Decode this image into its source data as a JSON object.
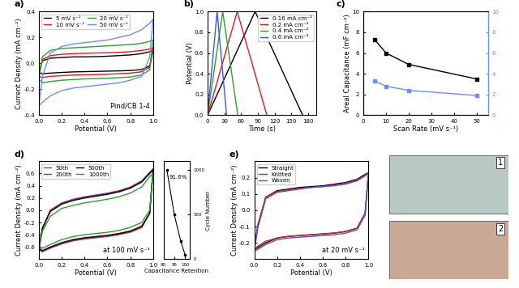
{
  "chart_data": [
    {
      "type": "line",
      "panel_label": "a)",
      "x_label": "Potential (V)",
      "y_label": "Current Density (mA cm⁻²)",
      "annotation": "Pind/CB 1-4",
      "legend": "upper left",
      "xlim": [
        0.0,
        1.0
      ],
      "ylim": [
        -0.4,
        0.4
      ],
      "xticks": [
        0.0,
        0.2,
        0.4,
        0.6,
        0.8,
        1.0
      ],
      "yticks": [
        -0.4,
        -0.2,
        0.0,
        0.2,
        0.4
      ],
      "x": [
        0,
        0.03,
        0.1,
        0.2,
        0.3,
        0.4,
        0.5,
        0.6,
        0.7,
        0.8,
        0.9,
        0.97,
        1.0,
        0.97,
        0.9,
        0.8,
        0.7,
        0.6,
        0.5,
        0.4,
        0.3,
        0.2,
        0.1,
        0.03,
        0
      ],
      "series": [
        {
          "name": "5 mV s⁻¹",
          "color": "#000000",
          "values": [
            -0.07,
            0.02,
            0.04,
            0.045,
            0.05,
            0.05,
            0.052,
            0.055,
            0.06,
            0.065,
            0.075,
            0.09,
            0.1,
            -0.02,
            -0.048,
            -0.055,
            -0.058,
            -0.06,
            -0.062,
            -0.064,
            -0.066,
            -0.07,
            -0.075,
            -0.08,
            -0.07
          ]
        },
        {
          "name": "10 mV s⁻¹",
          "color": "#e41a1c",
          "values": [
            -0.1,
            0.03,
            0.06,
            0.07,
            0.075,
            0.078,
            0.08,
            0.082,
            0.085,
            0.09,
            0.1,
            0.11,
            0.12,
            -0.03,
            -0.065,
            -0.075,
            -0.08,
            -0.084,
            -0.086,
            -0.088,
            -0.09,
            -0.095,
            -0.1,
            -0.11,
            -0.1
          ]
        },
        {
          "name": "20 mV s⁻¹",
          "color": "#2ca02c",
          "values": [
            -0.12,
            0.05,
            0.1,
            0.115,
            0.12,
            0.125,
            0.13,
            0.135,
            0.14,
            0.145,
            0.155,
            0.17,
            0.18,
            -0.05,
            -0.09,
            -0.105,
            -0.11,
            -0.115,
            -0.118,
            -0.12,
            -0.125,
            -0.13,
            -0.14,
            -0.15,
            -0.12
          ]
        },
        {
          "name": "50 mV s⁻¹",
          "color": "#6f8ff0",
          "values": [
            -0.33,
            -0.1,
            0.08,
            0.13,
            0.15,
            0.16,
            0.17,
            0.18,
            0.2,
            0.22,
            0.26,
            0.31,
            0.34,
            0.05,
            -0.1,
            -0.13,
            -0.15,
            -0.16,
            -0.17,
            -0.18,
            -0.19,
            -0.21,
            -0.25,
            -0.3,
            -0.33
          ]
        }
      ]
    },
    {
      "type": "line",
      "panel_label": "b)",
      "x_label": "Time (s)",
      "y_label": "Potential (V)",
      "legend": "upper right",
      "xlim": [
        0,
        195
      ],
      "ylim": [
        0.0,
        1.0
      ],
      "xticks": [
        0,
        30,
        60,
        90,
        120,
        150,
        180
      ],
      "yticks": [
        0.0,
        0.2,
        0.4,
        0.6,
        0.8,
        1.0
      ],
      "series": [
        {
          "name": "0.16 mA cm⁻²",
          "color": "#000000",
          "x": [
            0,
            85,
            170
          ],
          "values": [
            0.0,
            1.0,
            0.0
          ]
        },
        {
          "name": "0.2 mA cm⁻²",
          "color": "#e41a1c",
          "x": [
            0,
            53,
            106
          ],
          "values": [
            0.0,
            1.0,
            0.0
          ]
        },
        {
          "name": "0.4 mA cm⁻²",
          "color": "#2ca02c",
          "x": [
            0,
            27,
            54
          ],
          "values": [
            0.0,
            1.0,
            0.0
          ]
        },
        {
          "name": "0.6 mA cm⁻²",
          "color": "#3b5bdb",
          "x": [
            0,
            17,
            34
          ],
          "values": [
            0.0,
            1.0,
            0.0
          ]
        }
      ]
    },
    {
      "type": "line",
      "panel_label": "c)",
      "x_label": "Scan Rate (mV s⁻¹)",
      "y_label": "Areal Capacitance (mF cm⁻²)",
      "xlim": [
        0,
        55
      ],
      "ylim": [
        0,
        10
      ],
      "y2lim": [
        0,
        10
      ],
      "xticks": [
        0,
        10,
        20,
        30,
        40,
        50
      ],
      "yticks": [
        0,
        2,
        4,
        6,
        8,
        10
      ],
      "y2ticks": [
        0,
        2,
        4,
        6,
        8,
        10
      ],
      "x": [
        5,
        10,
        20,
        50
      ],
      "marker": "s",
      "series": [
        {
          "color": "#000000",
          "values": [
            7.3,
            6.0,
            4.9,
            3.5
          ]
        },
        {
          "color": "#6f8ff0",
          "values": [
            3.3,
            2.8,
            2.4,
            1.9
          ],
          "axis": "y2"
        }
      ]
    },
    {
      "type": "line",
      "panel_label": "d)",
      "x_label": "Potential (V)",
      "y_label": "Current Density (mA cm⁻²)",
      "annotation": "at 100 mV s⁻¹",
      "legend": "upper left",
      "xlim": [
        0.0,
        1.0
      ],
      "ylim": [
        -0.8,
        0.8
      ],
      "xticks": [
        0.0,
        0.2,
        0.4,
        0.6,
        0.8,
        1.0
      ],
      "yticks": [
        -0.6,
        -0.4,
        -0.2,
        0.0,
        0.2,
        0.4,
        0.6
      ],
      "x": [
        0,
        0.03,
        0.1,
        0.2,
        0.3,
        0.4,
        0.5,
        0.6,
        0.7,
        0.8,
        0.9,
        0.97,
        1.0,
        0.97,
        0.9,
        0.8,
        0.7,
        0.6,
        0.5,
        0.4,
        0.3,
        0.2,
        0.1,
        0.03,
        0
      ],
      "series": [
        {
          "name": "50th",
          "color": "#3b5bdb",
          "values": [
            -0.65,
            -0.3,
            0.0,
            0.12,
            0.18,
            0.22,
            0.25,
            0.28,
            0.32,
            0.38,
            0.48,
            0.62,
            0.68,
            -0.05,
            -0.28,
            -0.36,
            -0.4,
            -0.43,
            -0.45,
            -0.47,
            -0.5,
            -0.55,
            -0.62,
            -0.68,
            -0.65
          ]
        },
        {
          "name": "200th",
          "color": "#e41a1c",
          "values": [
            -0.64,
            -0.3,
            0.0,
            0.11,
            0.17,
            0.21,
            0.24,
            0.27,
            0.31,
            0.37,
            0.47,
            0.61,
            0.67,
            -0.05,
            -0.28,
            -0.35,
            -0.39,
            -0.42,
            -0.44,
            -0.46,
            -0.49,
            -0.54,
            -0.61,
            -0.67,
            -0.64
          ]
        },
        {
          "name": "500th",
          "color": "#000000",
          "values": [
            -0.62,
            -0.3,
            -0.02,
            0.1,
            0.16,
            0.2,
            0.23,
            0.26,
            0.3,
            0.36,
            0.46,
            0.6,
            0.66,
            -0.05,
            -0.26,
            -0.34,
            -0.38,
            -0.41,
            -0.43,
            -0.45,
            -0.48,
            -0.53,
            -0.6,
            -0.66,
            -0.62
          ]
        },
        {
          "name": "1000th",
          "color": "#2ca02c",
          "values": [
            -0.6,
            -0.35,
            -0.1,
            0.03,
            0.08,
            0.12,
            0.15,
            0.18,
            0.22,
            0.28,
            0.38,
            0.55,
            0.6,
            0.0,
            -0.2,
            -0.28,
            -0.33,
            -0.36,
            -0.38,
            -0.4,
            -0.43,
            -0.48,
            -0.56,
            -0.62,
            -0.6
          ]
        }
      ]
    },
    {
      "type": "line",
      "x_label": "Capacitance Retention",
      "y_label": "Cycle Number",
      "annotation": "91.6%",
      "xlim": [
        90,
        102
      ],
      "ylim": [
        0,
        1100
      ],
      "xticks": [
        90,
        95,
        100
      ],
      "yticks": [
        0,
        500,
        1000
      ],
      "marker": "s",
      "color": "#000000",
      "x": [
        100,
        98,
        95,
        91.6
      ],
      "values": [
        50,
        200,
        500,
        1000
      ]
    },
    {
      "type": "line",
      "panel_label": "e)",
      "x_label": "Potential (V)",
      "y_label": "Current Density (mA cm⁻²)",
      "annotation": "at 20 mV s⁻¹",
      "legend": "upper left",
      "xlim": [
        0.0,
        1.0
      ],
      "ylim": [
        -0.3,
        0.3
      ],
      "xticks": [
        0.0,
        0.2,
        0.4,
        0.6,
        0.8,
        1.0
      ],
      "yticks": [
        -0.2,
        -0.1,
        0.0,
        0.1,
        0.2
      ],
      "x": [
        0,
        0.03,
        0.1,
        0.2,
        0.3,
        0.4,
        0.5,
        0.6,
        0.7,
        0.8,
        0.9,
        0.97,
        1.0,
        0.97,
        0.9,
        0.8,
        0.7,
        0.6,
        0.5,
        0.4,
        0.3,
        0.2,
        0.1,
        0.03,
        0
      ],
      "series": [
        {
          "name": "Straight",
          "color": "#000000",
          "values": [
            -0.24,
            -0.1,
            0.08,
            0.12,
            0.13,
            0.14,
            0.145,
            0.15,
            0.16,
            0.17,
            0.19,
            0.22,
            0.23,
            -0.02,
            -0.11,
            -0.13,
            -0.14,
            -0.145,
            -0.15,
            -0.155,
            -0.16,
            -0.17,
            -0.2,
            -0.23,
            -0.24
          ]
        },
        {
          "name": "Knitted",
          "color": "#e41a1c",
          "values": [
            -0.24,
            -0.09,
            0.08,
            0.115,
            0.125,
            0.135,
            0.14,
            0.145,
            0.155,
            0.165,
            0.185,
            0.215,
            0.23,
            -0.02,
            -0.11,
            -0.13,
            -0.14,
            -0.145,
            -0.15,
            -0.155,
            -0.16,
            -0.17,
            -0.19,
            -0.22,
            -0.24
          ]
        },
        {
          "name": "Woven",
          "color": "#3b5bdb",
          "values": [
            -0.25,
            -0.11,
            0.07,
            0.11,
            0.12,
            0.13,
            0.14,
            0.145,
            0.15,
            0.16,
            0.18,
            0.21,
            0.23,
            -0.03,
            -0.12,
            -0.14,
            -0.15,
            -0.155,
            -0.16,
            -0.165,
            -0.17,
            -0.18,
            -0.21,
            -0.24,
            -0.25
          ]
        }
      ]
    }
  ],
  "photos": {
    "labels": [
      "1",
      "2"
    ]
  }
}
